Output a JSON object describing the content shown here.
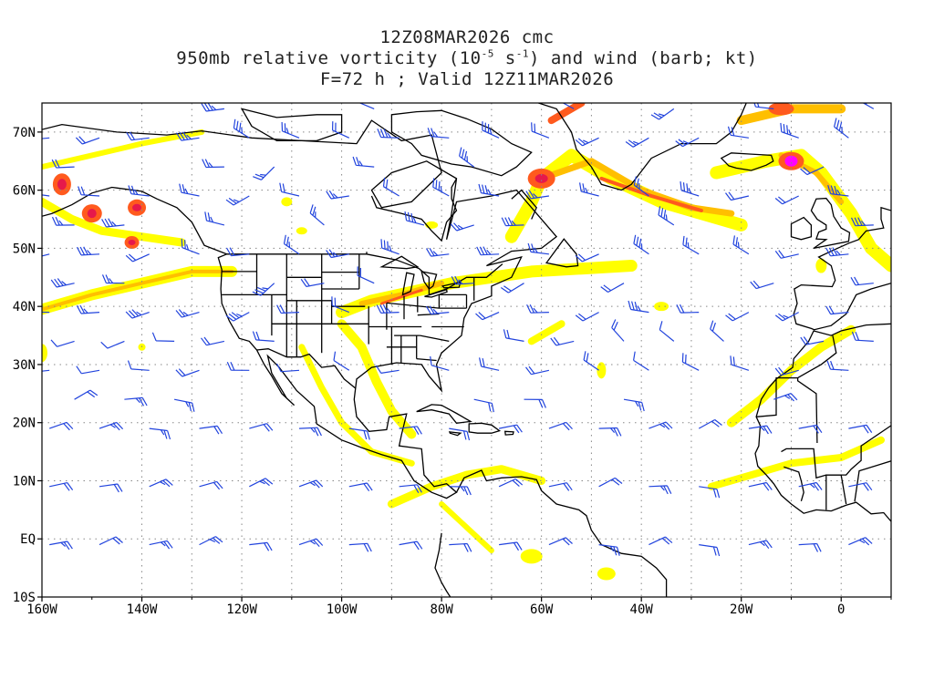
{
  "title": {
    "line1": "12Z08MAR2026 cmc",
    "line2_prefix": "950mb relative vorticity (10",
    "line2_exp1": "-5",
    "line2_mid": " s",
    "line2_exp2": "-1",
    "line2_suffix": ") and wind (barb; kt)",
    "line3": "F=72 h ; Valid 12Z11MAR2026"
  },
  "map": {
    "lon_range": [
      -160,
      10
    ],
    "lat_range": [
      -10,
      75
    ],
    "lon_ticks": [
      "160W",
      "140W",
      "120W",
      "100W",
      "80W",
      "60W",
      "40W",
      "20W",
      "0"
    ],
    "lat_ticks": [
      "10S",
      "EQ",
      "10N",
      "20N",
      "30N",
      "40N",
      "50N",
      "60N",
      "70N"
    ],
    "grid": "dotted",
    "colors": {
      "shade_low": "#ffff00",
      "shade_mid": "#ffbf00",
      "shade_high": "#ff5a1e",
      "shade_max": "#e6194b",
      "shade_peak": "#ff00ff",
      "barb": "#2244dd",
      "coast": "#000000"
    }
  }
}
